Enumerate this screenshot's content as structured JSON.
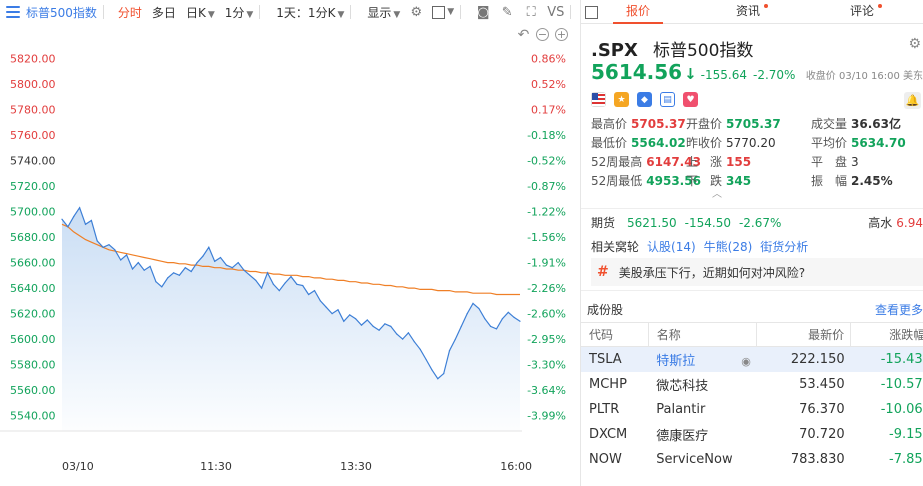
{
  "toolbar": {
    "title": "标普500指数",
    "timeshare": "分时",
    "multi_day": "多日",
    "period": "日K",
    "interval": "1分",
    "range": "1天：1分K",
    "display": "显示",
    "vs": "VS"
  },
  "chart_data": {
    "type": "line",
    "series": [
      {
        "values": [
          5694,
          5688,
          5696,
          5703,
          5690,
          5693,
          5677,
          5672,
          5674,
          5670,
          5662,
          5666,
          5655,
          5660,
          5654,
          5657,
          5645,
          5641,
          5648,
          5652,
          5650,
          5656,
          5653,
          5660,
          5665,
          5672,
          5661,
          5664,
          5658,
          5656,
          5660,
          5654,
          5650,
          5646,
          5640,
          5652,
          5643,
          5638,
          5644,
          5649,
          5643,
          5642,
          5635,
          5638,
          5630,
          5625,
          5620,
          5623,
          5614,
          5619,
          5616,
          5611,
          5615,
          5610,
          5607,
          5612,
          5610,
          5604,
          5600,
          5605,
          5598,
          5592,
          5584,
          5576,
          5569,
          5573,
          5591,
          5600,
          5610,
          5620,
          5628,
          5624,
          5616,
          5610,
          5608,
          5616,
          5621,
          5617,
          5614
        ]
      },
      {
        "values": [
          5690,
          5688,
          5684,
          5681,
          5678,
          5676,
          5674,
          5672,
          5670,
          5669,
          5668,
          5667,
          5666,
          5665,
          5664,
          5663,
          5662,
          5661,
          5660,
          5660,
          5659,
          5659,
          5658,
          5658,
          5657,
          5657,
          5656,
          5656,
          5655,
          5655,
          5654,
          5654,
          5653,
          5653,
          5652,
          5652,
          5651,
          5651,
          5650,
          5650,
          5650,
          5649,
          5649,
          5648,
          5648,
          5647,
          5647,
          5646,
          5646,
          5645,
          5645,
          5644,
          5644,
          5643,
          5643,
          5642,
          5642,
          5641,
          5641,
          5640,
          5640,
          5639,
          5639,
          5639,
          5638,
          5638,
          5638,
          5637,
          5637,
          5637,
          5636,
          5636,
          5636,
          5636,
          5635,
          5635,
          5635,
          5635,
          5635
        ]
      }
    ],
    "ylim": [
      5528,
      5836
    ],
    "yticks": [
      "5820.00",
      "5800.00",
      "5780.00",
      "5760.00",
      "5740.00",
      "5720.00",
      "5700.00",
      "5680.00",
      "5660.00",
      "5640.00",
      "5620.00",
      "5600.00",
      "5580.00",
      "5560.00",
      "5540.00"
    ],
    "pct_ticks": [
      "0.86%",
      "0.52%",
      "0.17%",
      "-0.18%",
      "-0.52%",
      "-0.87%",
      "-1.22%",
      "-1.56%",
      "-1.91%",
      "-2.26%",
      "-2.60%",
      "-2.95%",
      "-3.30%",
      "-3.64%",
      "-3.99%"
    ],
    "xticks": [
      "03/10",
      "11:30",
      "13:30",
      "16:00"
    ],
    "colors": {
      "price": "#3d7fd6",
      "average": "#ef7f26",
      "fill_top": "#c7dcf4",
      "up": "#e23d3d",
      "down": "#12a35b"
    },
    "grid": false
  },
  "tabs": [
    "报价",
    "资讯",
    "评论"
  ],
  "quote": {
    "code": ".SPX",
    "name": "标普500指数",
    "price": "5614.56",
    "change": "-155.64",
    "change_pct": "-2.70%",
    "status": "收盘价 03/10 16:00 美东",
    "stats": [
      {
        "l1": "最高价",
        "v1": "5705.37",
        "l2": "开盘价",
        "v2": "5705.37",
        "l3": "成交量",
        "v3": "36.63亿"
      },
      {
        "l1": "最低价",
        "v1": "5564.02",
        "l2": "昨收价",
        "v2": "5770.20",
        "l3": "平均价",
        "v3": "5634.70"
      },
      {
        "l1": "52周最高",
        "v1": "6147.43",
        "l2": "上　涨",
        "v2": "155",
        "l3": "平　盘",
        "v3": "3"
      },
      {
        "l1": "52周最低",
        "v1": "4953.56",
        "l2": "下　跌",
        "v2": "345",
        "l3": "振　幅",
        "v3": "2.45%"
      }
    ],
    "futures": {
      "label": "期货",
      "price": "5621.50",
      "change": "-154.50",
      "change_pct": "-2.67%",
      "high_label": "高水",
      "high_val": "6.94"
    },
    "related": {
      "label": "相关窝轮",
      "bull": "认股(14)",
      "cow": "牛熊(28)",
      "analysis": "街货分析"
    },
    "news": "美股承压下行，近期如何对冲风险?",
    "constituents": {
      "title": "成份股",
      "more": "查看更多",
      "headers": [
        "代码",
        "名称",
        "最新价",
        "涨跌幅"
      ],
      "rows": [
        {
          "code": "TSLA",
          "name": "特斯拉",
          "price": "222.150",
          "pct": "-15.43%"
        },
        {
          "code": "MCHP",
          "name": "微芯科技",
          "price": "53.450",
          "pct": "-10.57%"
        },
        {
          "code": "PLTR",
          "name": "Palantir",
          "price": "76.370",
          "pct": "-10.06%"
        },
        {
          "code": "DXCM",
          "name": "德康医疗",
          "price": "70.720",
          "pct": "-9.15%"
        },
        {
          "code": "NOW",
          "name": "ServiceNow",
          "price": "783.830",
          "pct": "-7.85%"
        }
      ]
    }
  }
}
